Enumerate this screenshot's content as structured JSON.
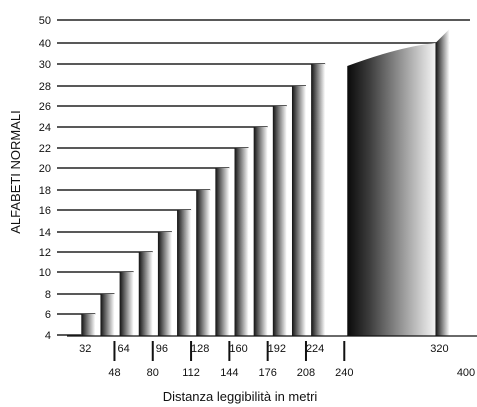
{
  "chart_data": {
    "type": "bar",
    "title": "",
    "xlabel": "Distanza leggibilità in metri",
    "ylabel": "ALFABETI NORMALI",
    "y_ticks": [
      4,
      6,
      8,
      10,
      12,
      14,
      16,
      18,
      20,
      22,
      24,
      26,
      28,
      30,
      40,
      50
    ],
    "x_ticks_upper": [
      32,
      64,
      96,
      128,
      160,
      192,
      224,
      320
    ],
    "x_ticks_lower": [
      48,
      80,
      112,
      144,
      176,
      208,
      240,
      400
    ],
    "x_tick_marks": [
      48,
      80,
      112,
      144,
      176,
      208,
      240,
      400
    ],
    "series": [
      {
        "values": [
          {
            "y": 6,
            "x": 32
          },
          {
            "y": 8,
            "x": 48
          },
          {
            "y": 10,
            "x": 64
          },
          {
            "y": 12,
            "x": 80
          },
          {
            "y": 14,
            "x": 96
          },
          {
            "y": 16,
            "x": 112
          },
          {
            "y": 18,
            "x": 128
          },
          {
            "y": 20,
            "x": 144
          },
          {
            "y": 22,
            "x": 160
          },
          {
            "y": 24,
            "x": 176
          },
          {
            "y": 26,
            "x": 192
          },
          {
            "y": 28,
            "x": 208
          },
          {
            "y": 30,
            "x": 224
          },
          {
            "y": 40,
            "x": 320
          }
        ]
      }
    ],
    "grid": "horizontal lines at each y tick",
    "legend": "none",
    "colors": {
      "bar_dark": "#111111",
      "bar_light": "#ffffff",
      "gridline": "#222222",
      "text": "#111111"
    }
  }
}
